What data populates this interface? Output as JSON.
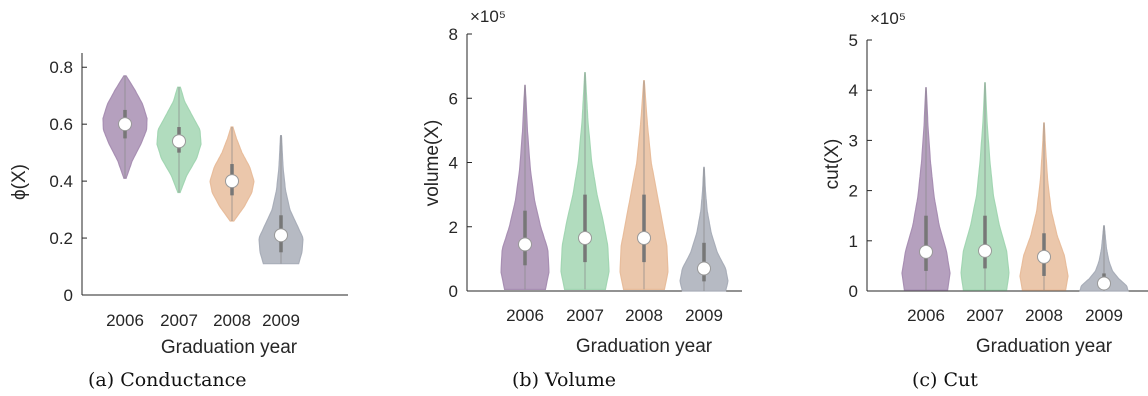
{
  "chart_data": [
    {
      "type": "violin",
      "caption": "(a) Conductance",
      "xlabel": "Graduation year",
      "ylabel": "ϕ(X)",
      "ylim": [
        0,
        0.85
      ],
      "yticks": [
        0,
        0.2,
        0.4,
        0.6,
        0.8
      ],
      "ytick_labels": [
        "0",
        "0.2",
        "0.4",
        "0.6",
        "0.8"
      ],
      "multiplier": "",
      "categories": [
        "2006",
        "2007",
        "2008",
        "2009"
      ],
      "colors": [
        "#a88fb3",
        "#a3d6b3",
        "#e8bd9c",
        "#a9aeb9"
      ],
      "medians": [
        0.6,
        0.54,
        0.4,
        0.21
      ],
      "q1": [
        0.55,
        0.5,
        0.35,
        0.15
      ],
      "q3": [
        0.65,
        0.59,
        0.46,
        0.28
      ],
      "mins": [
        0.41,
        0.36,
        0.26,
        0.11
      ],
      "maxs": [
        0.77,
        0.73,
        0.59,
        0.56
      ],
      "profiles": [
        [
          [
            0.41,
            0.05
          ],
          [
            0.47,
            0.32
          ],
          [
            0.53,
            0.72
          ],
          [
            0.58,
            0.98
          ],
          [
            0.62,
            1.0
          ],
          [
            0.67,
            0.8
          ],
          [
            0.72,
            0.45
          ],
          [
            0.77,
            0.05
          ]
        ],
        [
          [
            0.36,
            0.05
          ],
          [
            0.42,
            0.35
          ],
          [
            0.48,
            0.8
          ],
          [
            0.53,
            1.0
          ],
          [
            0.58,
            0.95
          ],
          [
            0.63,
            0.6
          ],
          [
            0.68,
            0.25
          ],
          [
            0.73,
            0.06
          ]
        ],
        [
          [
            0.26,
            0.08
          ],
          [
            0.31,
            0.55
          ],
          [
            0.36,
            0.9
          ],
          [
            0.4,
            1.0
          ],
          [
            0.45,
            0.8
          ],
          [
            0.5,
            0.45
          ],
          [
            0.55,
            0.2
          ],
          [
            0.59,
            0.04
          ]
        ],
        [
          [
            0.11,
            0.8
          ],
          [
            0.15,
            0.95
          ],
          [
            0.2,
            1.0
          ],
          [
            0.25,
            0.7
          ],
          [
            0.3,
            0.4
          ],
          [
            0.37,
            0.2
          ],
          [
            0.45,
            0.09
          ],
          [
            0.56,
            0.02
          ]
        ]
      ]
    },
    {
      "type": "violin",
      "caption": "(b) Volume",
      "xlabel": "Graduation year",
      "ylabel": "volume(X)",
      "ylim": [
        0,
        8
      ],
      "yticks": [
        0,
        2,
        4,
        6,
        8
      ],
      "ytick_labels": [
        "0",
        "2",
        "4",
        "6",
        "8"
      ],
      "multiplier": "×10⁵",
      "categories": [
        "2006",
        "2007",
        "2008",
        "2009"
      ],
      "colors": [
        "#a88fb3",
        "#a3d6b3",
        "#e8bd9c",
        "#a9aeb9"
      ],
      "medians": [
        1.45,
        1.65,
        1.65,
        0.7
      ],
      "q1": [
        0.8,
        0.9,
        0.9,
        0.3
      ],
      "q3": [
        2.5,
        3.0,
        3.0,
        1.5
      ],
      "mins": [
        0.05,
        0.05,
        0.05,
        0.0
      ],
      "maxs": [
        6.4,
        6.8,
        6.55,
        3.85
      ],
      "profiles": [
        [
          [
            0.05,
            0.85
          ],
          [
            0.6,
            1.0
          ],
          [
            1.3,
            0.95
          ],
          [
            2.0,
            0.65
          ],
          [
            2.8,
            0.4
          ],
          [
            3.8,
            0.22
          ],
          [
            5.0,
            0.1
          ],
          [
            6.4,
            0.01
          ]
        ],
        [
          [
            0.05,
            0.85
          ],
          [
            0.6,
            1.0
          ],
          [
            1.4,
            0.95
          ],
          [
            2.2,
            0.75
          ],
          [
            3.0,
            0.5
          ],
          [
            4.0,
            0.28
          ],
          [
            5.3,
            0.12
          ],
          [
            6.8,
            0.01
          ]
        ],
        [
          [
            0.05,
            0.85
          ],
          [
            0.6,
            1.0
          ],
          [
            1.4,
            0.95
          ],
          [
            2.2,
            0.75
          ],
          [
            3.0,
            0.55
          ],
          [
            4.0,
            0.3
          ],
          [
            5.2,
            0.14
          ],
          [
            6.55,
            0.01
          ]
        ],
        [
          [
            0.0,
            0.9
          ],
          [
            0.3,
            1.0
          ],
          [
            0.7,
            0.9
          ],
          [
            1.2,
            0.55
          ],
          [
            1.8,
            0.3
          ],
          [
            2.5,
            0.13
          ],
          [
            3.1,
            0.06
          ],
          [
            3.85,
            0.01
          ]
        ]
      ]
    },
    {
      "type": "violin",
      "caption": "(c) Cut",
      "xlabel": "Graduation year",
      "ylabel": "cut(X)",
      "ylim": [
        0,
        5
      ],
      "yticks": [
        0,
        1,
        2,
        3,
        4,
        5
      ],
      "ytick_labels": [
        "0",
        "1",
        "2",
        "3",
        "4",
        "5"
      ],
      "multiplier": "×10⁵",
      "categories": [
        "2006",
        "2007",
        "2008",
        "2009"
      ],
      "colors": [
        "#a88fb3",
        "#a3d6b3",
        "#e8bd9c",
        "#a9aeb9"
      ],
      "medians": [
        0.78,
        0.8,
        0.68,
        0.15
      ],
      "q1": [
        0.4,
        0.45,
        0.3,
        0.05
      ],
      "q3": [
        1.5,
        1.5,
        1.15,
        0.35
      ],
      "mins": [
        0.02,
        0.02,
        0.02,
        0.0
      ],
      "maxs": [
        4.05,
        4.15,
        3.35,
        1.3
      ],
      "profiles": [
        [
          [
            0.02,
            0.9
          ],
          [
            0.35,
            1.0
          ],
          [
            0.8,
            0.85
          ],
          [
            1.3,
            0.55
          ],
          [
            1.9,
            0.33
          ],
          [
            2.6,
            0.18
          ],
          [
            3.3,
            0.08
          ],
          [
            4.05,
            0.01
          ]
        ],
        [
          [
            0.02,
            0.9
          ],
          [
            0.35,
            1.0
          ],
          [
            0.8,
            0.9
          ],
          [
            1.3,
            0.6
          ],
          [
            1.9,
            0.35
          ],
          [
            2.6,
            0.2
          ],
          [
            3.4,
            0.08
          ],
          [
            4.15,
            0.01
          ]
        ],
        [
          [
            0.02,
            0.9
          ],
          [
            0.3,
            1.0
          ],
          [
            0.7,
            0.85
          ],
          [
            1.1,
            0.55
          ],
          [
            1.6,
            0.3
          ],
          [
            2.2,
            0.15
          ],
          [
            2.8,
            0.07
          ],
          [
            3.35,
            0.01
          ]
        ],
        [
          [
            0.0,
            1.0
          ],
          [
            0.1,
            0.95
          ],
          [
            0.25,
            0.6
          ],
          [
            0.4,
            0.35
          ],
          [
            0.6,
            0.2
          ],
          [
            0.85,
            0.1
          ],
          [
            1.1,
            0.05
          ],
          [
            1.3,
            0.01
          ]
        ]
      ]
    }
  ]
}
